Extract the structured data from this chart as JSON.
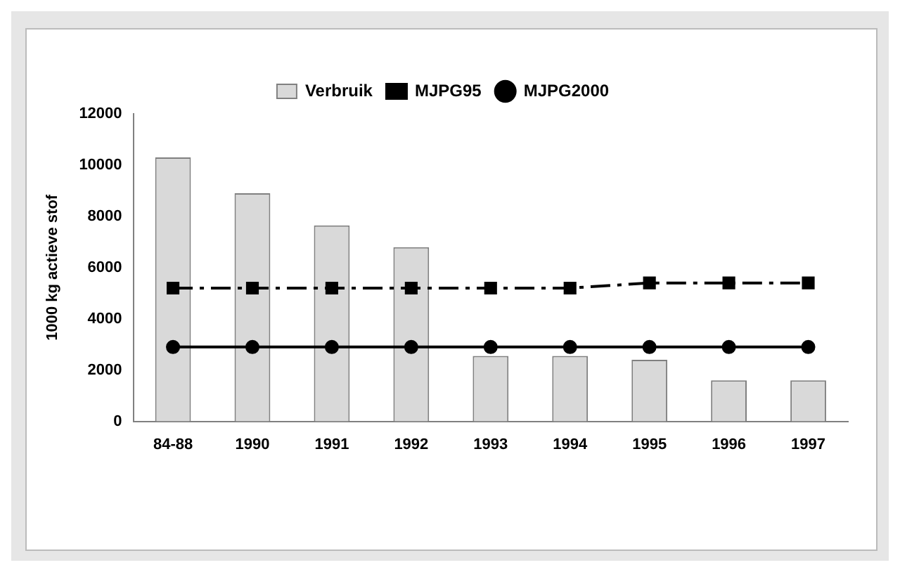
{
  "chart_data": {
    "type": "bar",
    "ylabel": "1000 kg actieve stof",
    "categories": [
      "84-88",
      "1990",
      "1991",
      "1992",
      "1993",
      "1994",
      "1995",
      "1996",
      "1997"
    ],
    "series": [
      {
        "name": "Verbruik",
        "color": "#d9d9d9",
        "values": [
          10300,
          8900,
          7650,
          6800,
          2550,
          2550,
          2400,
          1600,
          1600
        ]
      },
      {
        "name": "MJPG95",
        "type": "line",
        "color": "#000000",
        "line_style": "dashed",
        "marker": "square",
        "values": [
          5200,
          5200,
          5200,
          5200,
          5200,
          5200,
          5400,
          5400,
          5400
        ]
      },
      {
        "name": "MJPG2000",
        "type": "line",
        "color": "#000000",
        "line_style": "solid",
        "marker": "circle",
        "values": [
          2900,
          2900,
          2900,
          2900,
          2900,
          2900,
          2900,
          2900,
          2900
        ]
      }
    ],
    "ylim": [
      0,
      12000
    ],
    "yticks": [
      0,
      2000,
      4000,
      6000,
      8000,
      10000,
      12000
    ],
    "grid": false,
    "legend": "top"
  }
}
